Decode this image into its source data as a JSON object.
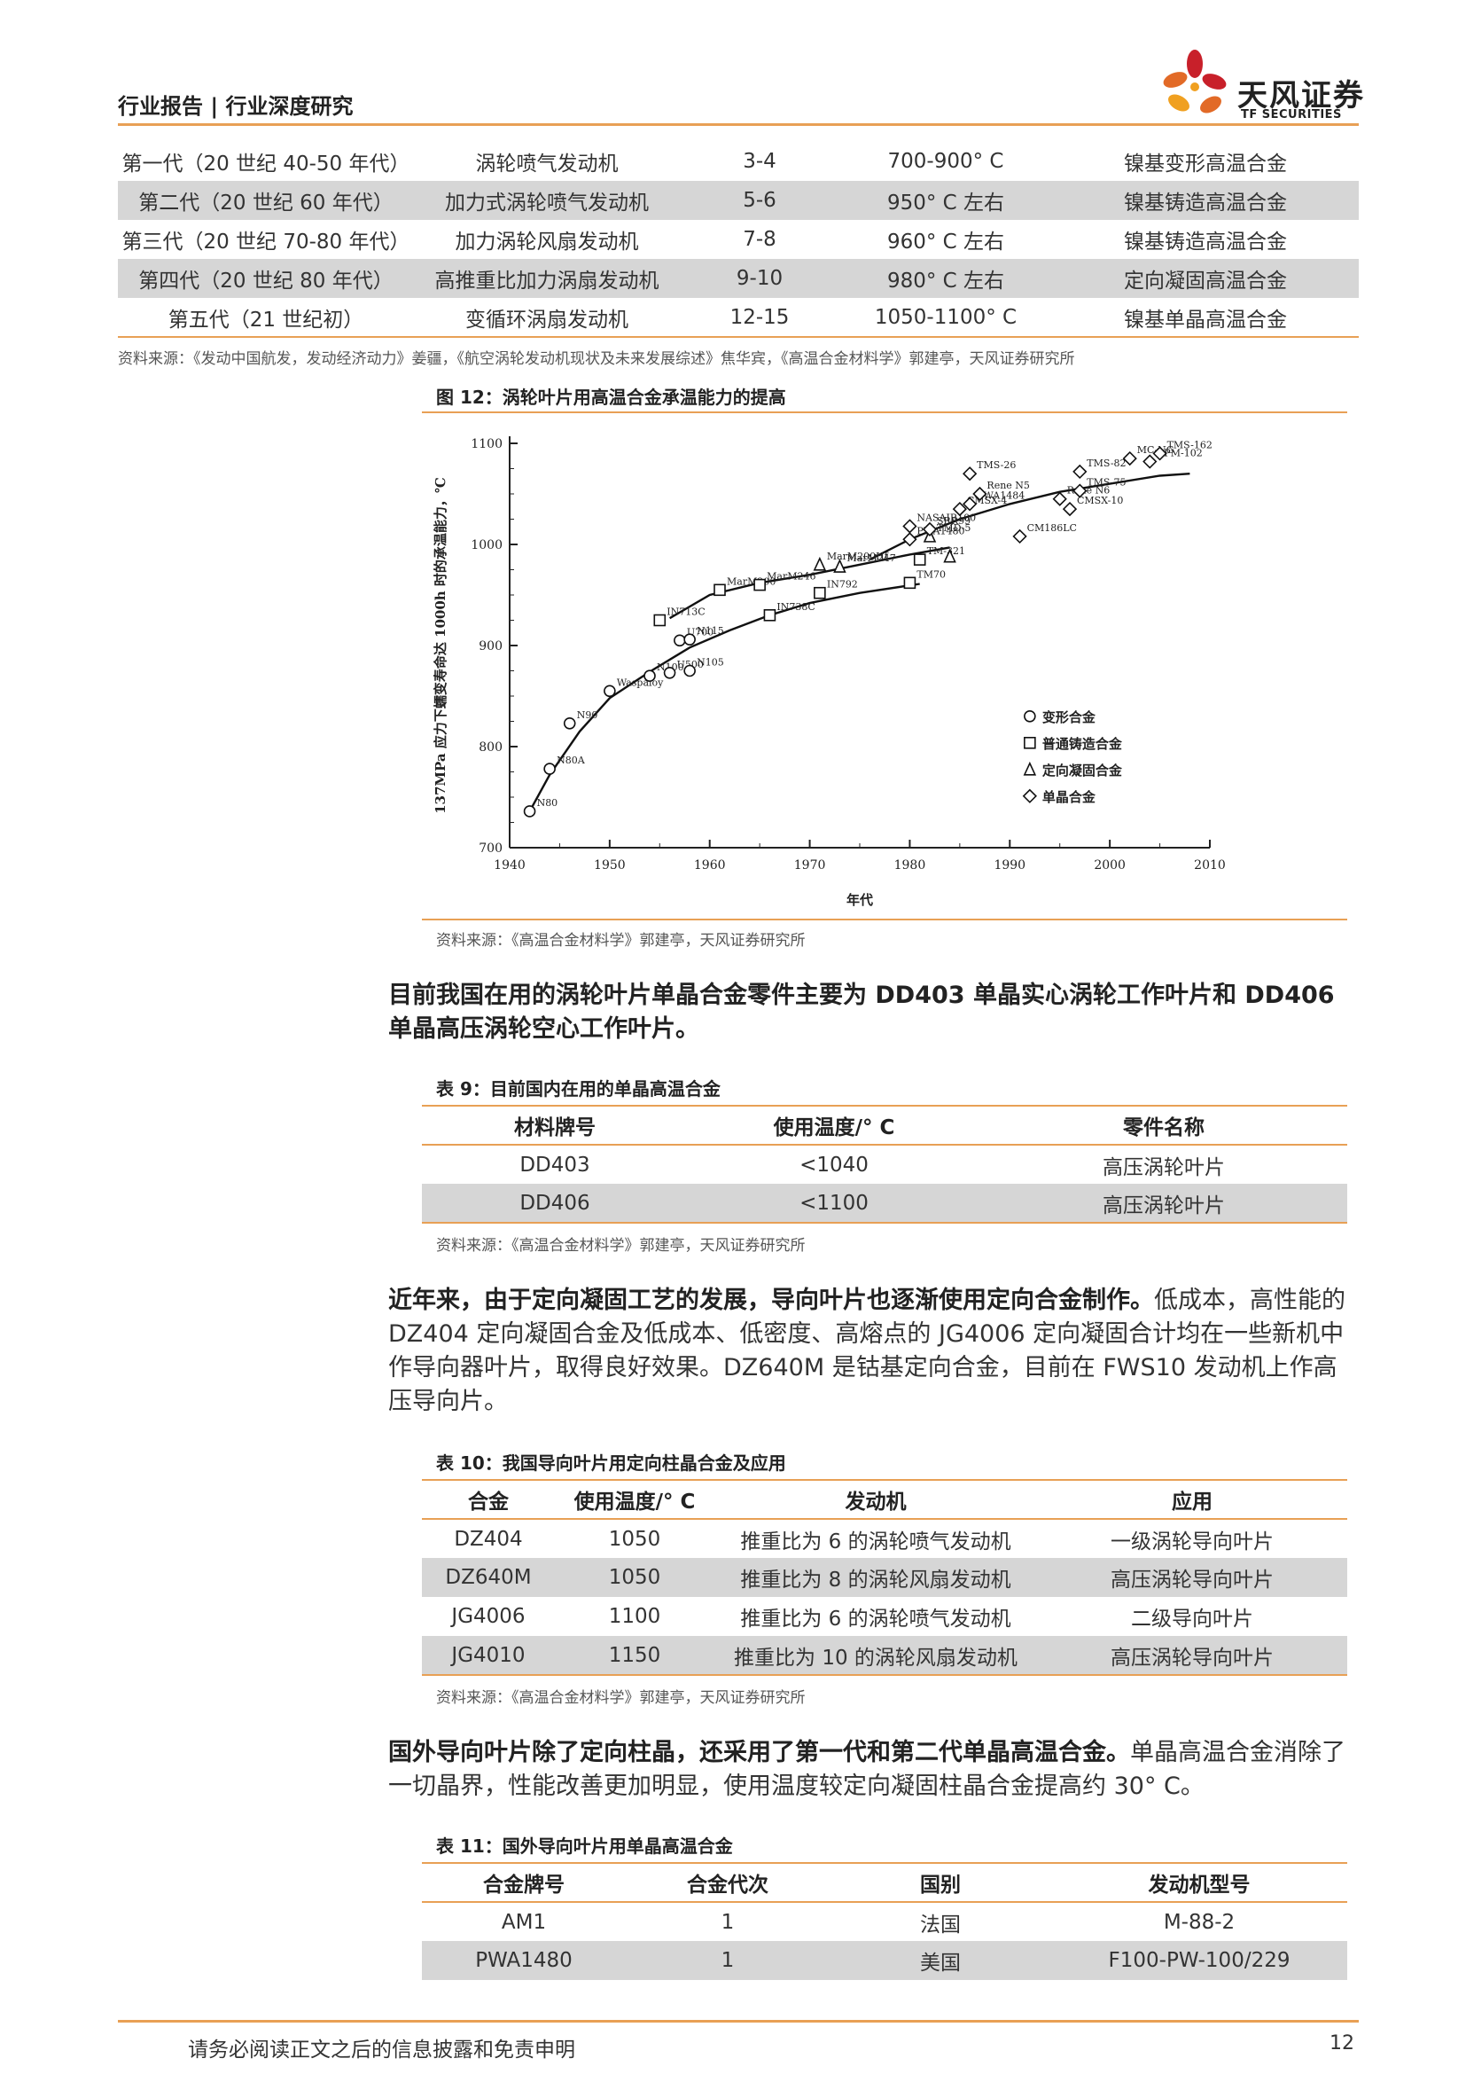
{
  "header": {
    "title": "行业报告 | 行业深度研究",
    "logo_cn": "天风证券",
    "logo_en": "TF SECURITIES"
  },
  "table_top": {
    "rows": [
      [
        "第一代（20 世纪 40-50 年代）",
        "涡轮喷气发动机",
        "3-4",
        "700-900° C",
        "镍基变形高温合金"
      ],
      [
        "第二代（20 世纪 60 年代）",
        "加力式涡轮喷气发动机",
        "5-6",
        "950° C 左右",
        "镍基铸造高温合金"
      ],
      [
        "第三代（20 世纪 70-80 年代）",
        "加力涡轮风扇发动机",
        "7-8",
        "960° C 左右",
        "镍基铸造高温合金"
      ],
      [
        "第四代（20 世纪 80 年代）",
        "高推重比加力涡扇发动机",
        "9-10",
        "980° C 左右",
        "定向凝固高温合金"
      ],
      [
        "第五代（21 世纪初）",
        "变循环涡扇发动机",
        "12-15",
        "1050-1100° C",
        "镍基单晶高温合金"
      ]
    ],
    "source": "资料来源：《发动中国航发，发动经济动力》姜疆，《航空涡轮发动机现状及未来发展综述》焦华宾，《高温合金材料学》郭建亭，天风证券研究所"
  },
  "figure12": {
    "caption": "图 12：涡轮叶片用高温合金承温能力的提高",
    "source": "资料来源：《高温合金材料学》郭建亭，天风证券研究所"
  },
  "chart_data": {
    "type": "scatter",
    "title": "",
    "xlabel": "年代",
    "ylabel": "137MPa 应力下蠕变寿命达 1000h 时的承温能力，℃",
    "xlim": [
      1940,
      2010
    ],
    "ylim": [
      700,
      1100
    ],
    "x_ticks": [
      "1940",
      "1950",
      "1960",
      "1970",
      "1980",
      "1990",
      "2000",
      "2010"
    ],
    "y_ticks": [
      "700",
      "800",
      "900",
      "1000",
      "1100"
    ],
    "legend": [
      "变形合金",
      "普通铸造合金",
      "定向凝固合金",
      "单晶合金"
    ],
    "legend_position": "lower-right",
    "series": [
      {
        "name": "变形合金",
        "marker": "circle",
        "points": [
          {
            "label": "N80",
            "x": 1942,
            "y": 736
          },
          {
            "label": "N80A",
            "x": 1944,
            "y": 778
          },
          {
            "label": "N90",
            "x": 1946,
            "y": 823
          },
          {
            "label": "Waspaloy",
            "x": 1950,
            "y": 855
          },
          {
            "label": "N100",
            "x": 1954,
            "y": 870
          },
          {
            "label": "U500",
            "x": 1956,
            "y": 873
          },
          {
            "label": "U700",
            "x": 1957,
            "y": 905
          },
          {
            "label": "N115",
            "x": 1958,
            "y": 906
          },
          {
            "label": "N105",
            "x": 1958,
            "y": 875
          }
        ]
      },
      {
        "name": "普通铸造合金",
        "marker": "square",
        "points": [
          {
            "label": "IN713C",
            "x": 1955,
            "y": 925
          },
          {
            "label": "MarM200",
            "x": 1961,
            "y": 955
          },
          {
            "label": "MarM246",
            "x": 1965,
            "y": 960
          },
          {
            "label": "IN738C",
            "x": 1966,
            "y": 930
          },
          {
            "label": "IN792",
            "x": 1971,
            "y": 952
          },
          {
            "label": "TM70",
            "x": 1980,
            "y": 962
          },
          {
            "label": "TM-321",
            "x": 1981,
            "y": 985
          }
        ]
      },
      {
        "name": "定向凝固合金",
        "marker": "triangle",
        "points": [
          {
            "label": "MarM200Hf",
            "x": 1971,
            "y": 980
          },
          {
            "label": "MarM247",
            "x": 1973,
            "y": 978
          },
          {
            "label": "TMD-5",
            "x": 1982,
            "y": 1008
          },
          {
            "label": "",
            "x": 1984,
            "y": 988
          }
        ]
      },
      {
        "name": "单晶合金",
        "marker": "diamond",
        "points": [
          {
            "label": "NASAIR100",
            "x": 1980,
            "y": 1018
          },
          {
            "label": "PWA1480",
            "x": 1980,
            "y": 1005
          },
          {
            "label": "SRR99",
            "x": 1982,
            "y": 1015
          },
          {
            "label": "CMSX-4",
            "x": 1985,
            "y": 1035
          },
          {
            "label": "PWA1484",
            "x": 1986,
            "y": 1040
          },
          {
            "label": "Rene N5",
            "x": 1987,
            "y": 1050
          },
          {
            "label": "TMS-26",
            "x": 1986,
            "y": 1070
          },
          {
            "label": "CM186LC",
            "x": 1991,
            "y": 1008
          },
          {
            "label": "Rene N6",
            "x": 1995,
            "y": 1045
          },
          {
            "label": "CMSX-10",
            "x": 1996,
            "y": 1035
          },
          {
            "label": "TMS-75",
            "x": 1997,
            "y": 1053
          },
          {
            "label": "TMS-82",
            "x": 1997,
            "y": 1072
          },
          {
            "label": "MC-NG",
            "x": 2002,
            "y": 1085
          },
          {
            "label": "EPM-102",
            "x": 2004,
            "y": 1082
          },
          {
            "label": "TMS-162",
            "x": 2005,
            "y": 1090
          }
        ]
      }
    ],
    "trend_lines": [
      [
        [
          1942,
          736
        ],
        [
          1944,
          772
        ],
        [
          1947,
          815
        ],
        [
          1950,
          848
        ],
        [
          1954,
          874
        ],
        [
          1958,
          898
        ],
        [
          1962,
          915
        ],
        [
          1966,
          930
        ],
        [
          1970,
          942
        ],
        [
          1975,
          952
        ],
        [
          1981,
          961
        ]
      ],
      [
        [
          1956,
          927
        ],
        [
          1960,
          950
        ],
        [
          1965,
          962
        ],
        [
          1970,
          970
        ],
        [
          1975,
          980
        ],
        [
          1980,
          990
        ],
        [
          1984,
          997
        ]
      ],
      [
        [
          1976,
          985
        ],
        [
          1980,
          1005
        ],
        [
          1985,
          1025
        ],
        [
          1990,
          1040
        ],
        [
          1995,
          1052
        ],
        [
          2000,
          1060
        ],
        [
          2005,
          1068
        ],
        [
          2008,
          1070
        ]
      ]
    ]
  },
  "para1": {
    "bold": "目前我国在用的涡轮叶片单晶合金零件主要为 DD403 单晶实心涡轮工作叶片和 DD406 单晶高压涡轮空心工作叶片。"
  },
  "table9": {
    "caption": "表 9：目前国内在用的单晶高温合金",
    "headers": [
      "材料牌号",
      "使用温度/° C",
      "零件名称"
    ],
    "rows": [
      [
        "DD403",
        "<1040",
        "高压涡轮叶片"
      ],
      [
        "DD406",
        "<1100",
        "高压涡轮叶片"
      ]
    ],
    "source": "资料来源：《高温合金材料学》郭建亭，天风证券研究所"
  },
  "para2": {
    "bold": "近年来，由于定向凝固工艺的发展，导向叶片也逐渐使用定向合金制作。",
    "rest": "低成本，高性能的 DZ404 定向凝固合金及低成本、低密度、高熔点的 JG4006 定向凝固合计均在一些新机中作导向器叶片，取得良好效果。DZ640M 是钴基定向合金，目前在 FWS10 发动机上作高压导向片。"
  },
  "table10": {
    "caption": "表 10：我国导向叶片用定向柱晶合金及应用",
    "headers": [
      "合金",
      "使用温度/° C",
      "发动机",
      "应用"
    ],
    "rows": [
      [
        "DZ404",
        "1050",
        "推重比为 6 的涡轮喷气发动机",
        "一级涡轮导向叶片"
      ],
      [
        "DZ640M",
        "1050",
        "推重比为 8 的涡轮风扇发动机",
        "高压涡轮导向叶片"
      ],
      [
        "JG4006",
        "1100",
        "推重比为 6 的涡轮喷气发动机",
        "二级导向叶片"
      ],
      [
        "JG4010",
        "1150",
        "推重比为 10 的涡轮风扇发动机",
        "高压涡轮导向叶片"
      ]
    ],
    "source": "资料来源：《高温合金材料学》郭建亭，天风证券研究所"
  },
  "para3": {
    "bold": "国外导向叶片除了定向柱晶，还采用了第一代和第二代单晶高温合金。",
    "rest": "单晶高温合金消除了一切晶界，性能改善更加明显，使用温度较定向凝固柱晶合金提高约 30° C。"
  },
  "table11": {
    "caption": "表 11：国外导向叶片用单晶高温合金",
    "headers": [
      "合金牌号",
      "合金代次",
      "国别",
      "发动机型号"
    ],
    "rows": [
      [
        "AM1",
        "1",
        "法国",
        "M-88-2"
      ],
      [
        "PWA1480",
        "1",
        "美国",
        "F100-PW-100/229"
      ]
    ]
  },
  "footer": {
    "disclaimer": "请务必阅读正文之后的信息披露和免责申明",
    "page": "12"
  }
}
